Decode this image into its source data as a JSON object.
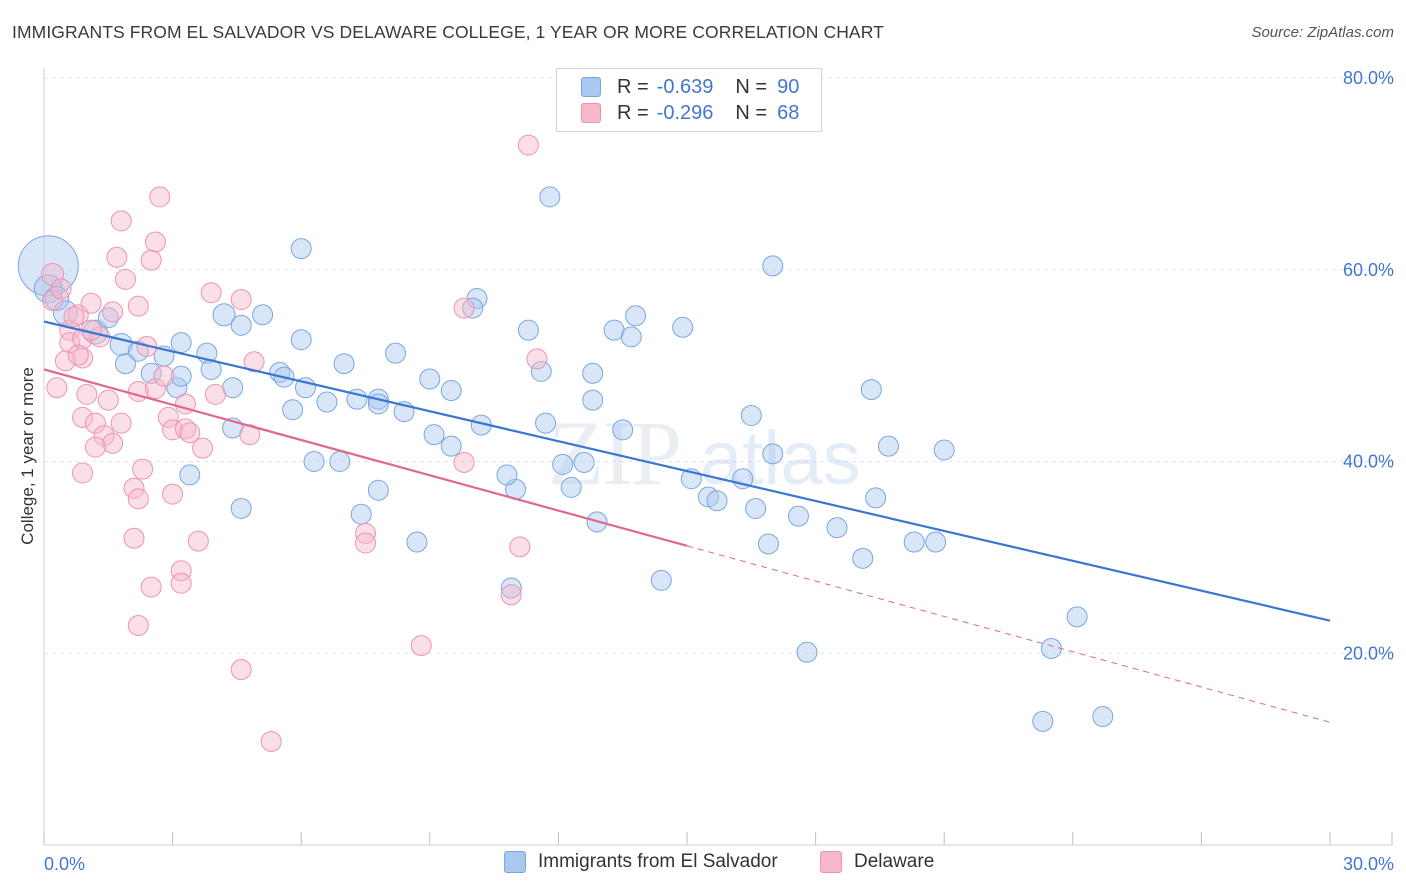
{
  "title": "IMMIGRANTS FROM EL SALVADOR VS DELAWARE COLLEGE, 1 YEAR OR MORE CORRELATION CHART",
  "source": "Source: ZipAtlas.com",
  "watermark": {
    "zip": "ZIP",
    "atlas": "atlas"
  },
  "legend": {
    "r_label": "R =",
    "n_label": "N =",
    "series": [
      {
        "name": "Immigrants from El Salvador",
        "r": "-0.639",
        "n": "90",
        "fill": "#a9c8f0",
        "stroke": "#7aa6e0"
      },
      {
        "name": "Delaware",
        "r": "-0.296",
        "n": "68",
        "fill": "#f7b8cb",
        "stroke": "#ec94b0"
      }
    ]
  },
  "chart_data": {
    "type": "scatter",
    "title": "IMMIGRANTS FROM EL SALVADOR VS DELAWARE COLLEGE, 1 YEAR OR MORE CORRELATION CHART",
    "xlabel": "",
    "ylabel": "College, 1 year or more",
    "xlim": [
      0,
      30
    ],
    "ylim": [
      0,
      80
    ],
    "x_tick_labels": [
      "0.0%",
      "30.0%"
    ],
    "y_ticks": [
      20,
      40,
      60,
      80
    ],
    "y_tick_labels": [
      "20.0%",
      "40.0%",
      "60.0%",
      "80.0%"
    ],
    "grid": true,
    "legend_position": "top-center",
    "colors": {
      "blue_line": "#3a77d0",
      "pink_line": "#e0678f",
      "tick_label": "#4277cf"
    },
    "series": [
      {
        "name": "Immigrants from El Salvador",
        "color": "#a9c8f0",
        "trend": {
          "x": [
            0,
            30
          ],
          "y": [
            54.6,
            23.4
          ],
          "dashed": false
        },
        "points": [
          [
            0.1,
            60.4,
            30
          ],
          [
            0.1,
            58.0,
            14
          ],
          [
            0.3,
            57.0,
            12
          ],
          [
            0.5,
            55.5,
            12
          ],
          [
            1.2,
            53.5,
            12
          ],
          [
            1.8,
            52.2,
            11
          ],
          [
            2.2,
            51.5,
            10
          ],
          [
            2.8,
            51.0,
            10
          ],
          [
            3.2,
            52.4,
            10
          ],
          [
            3.8,
            51.3,
            10
          ],
          [
            4.2,
            55.3,
            11
          ],
          [
            1.5,
            55.0,
            10
          ],
          [
            1.9,
            50.2,
            10
          ],
          [
            2.5,
            49.2,
            10
          ],
          [
            3.1,
            47.7,
            10
          ],
          [
            3.2,
            48.9,
            10
          ],
          [
            3.9,
            49.6,
            10
          ],
          [
            4.4,
            47.7,
            10
          ],
          [
            4.4,
            43.5,
            10
          ],
          [
            4.6,
            54.2,
            10
          ],
          [
            5.1,
            55.3,
            10
          ],
          [
            5.5,
            49.3,
            10
          ],
          [
            5.6,
            48.8,
            10
          ],
          [
            5.8,
            45.4,
            10
          ],
          [
            6.0,
            52.7,
            10
          ],
          [
            6.1,
            47.7,
            10
          ],
          [
            6.6,
            46.2,
            10
          ],
          [
            7.0,
            50.2,
            10
          ],
          [
            7.3,
            46.5,
            10
          ],
          [
            7.8,
            46.5,
            10
          ],
          [
            7.8,
            46.0,
            10
          ],
          [
            8.2,
            51.3,
            10
          ],
          [
            8.4,
            45.2,
            10
          ],
          [
            9.0,
            48.6,
            10
          ],
          [
            9.5,
            47.4,
            10
          ],
          [
            9.1,
            42.8,
            10
          ],
          [
            9.5,
            41.6,
            10
          ],
          [
            6.0,
            62.2,
            10
          ],
          [
            10.1,
            57.0,
            10
          ],
          [
            10.0,
            56.0,
            10
          ],
          [
            11.3,
            53.7,
            10
          ],
          [
            11.6,
            49.4,
            10
          ],
          [
            11.7,
            44.0,
            10
          ],
          [
            12.1,
            39.7,
            10
          ],
          [
            12.3,
            37.3,
            10
          ],
          [
            11.8,
            67.6,
            10
          ],
          [
            12.8,
            49.2,
            10
          ],
          [
            12.8,
            46.4,
            10
          ],
          [
            13.3,
            53.7,
            10
          ],
          [
            13.5,
            43.3,
            10
          ],
          [
            13.7,
            53.0,
            10
          ],
          [
            13.8,
            55.2,
            10
          ],
          [
            14.9,
            54.0,
            10
          ],
          [
            15.1,
            38.2,
            10
          ],
          [
            15.5,
            36.3,
            10
          ],
          [
            16.3,
            38.2,
            10
          ],
          [
            16.5,
            44.8,
            10
          ],
          [
            16.6,
            35.1,
            10
          ],
          [
            16.9,
            31.4,
            10
          ],
          [
            17.0,
            60.4,
            10
          ],
          [
            17.0,
            40.8,
            10
          ],
          [
            17.6,
            34.3,
            10
          ],
          [
            17.8,
            20.1,
            10
          ],
          [
            18.5,
            33.1,
            10
          ],
          [
            19.1,
            29.9,
            10
          ],
          [
            19.3,
            47.5,
            10
          ],
          [
            19.4,
            36.2,
            10
          ],
          [
            19.7,
            41.6,
            10
          ],
          [
            20.3,
            31.6,
            10
          ],
          [
            20.8,
            31.6,
            10
          ],
          [
            21.0,
            41.2,
            10
          ],
          [
            23.5,
            20.5,
            10
          ],
          [
            24.1,
            23.8,
            10
          ],
          [
            23.3,
            12.9,
            10
          ],
          [
            24.7,
            13.4,
            10
          ],
          [
            3.4,
            38.6,
            10
          ],
          [
            4.6,
            35.1,
            10
          ],
          [
            7.4,
            34.5,
            10
          ],
          [
            8.7,
            31.6,
            10
          ],
          [
            10.9,
            26.8,
            10
          ],
          [
            12.9,
            33.7,
            10
          ],
          [
            14.4,
            27.6,
            10
          ],
          [
            15.7,
            35.9,
            10
          ],
          [
            11.0,
            37.1,
            10
          ],
          [
            7.8,
            37.0,
            10
          ],
          [
            6.3,
            40.0,
            10
          ],
          [
            6.9,
            40.0,
            10
          ],
          [
            10.8,
            38.6,
            10
          ],
          [
            12.6,
            39.9,
            10
          ],
          [
            10.2,
            43.8,
            10
          ]
        ]
      },
      {
        "name": "Delaware",
        "color": "#f7b8cb",
        "trend": {
          "x": [
            0,
            15
          ],
          "y": [
            49.6,
            31.2
          ],
          "dashed": false,
          "extension": {
            "x": [
              15,
              30
            ],
            "y": [
              31.2,
              12.8
            ],
            "dashed": true
          }
        },
        "points": [
          [
            0.2,
            59.5,
            11
          ],
          [
            0.2,
            56.8,
            10
          ],
          [
            0.4,
            58.0,
            10
          ],
          [
            0.6,
            53.7,
            10
          ],
          [
            0.8,
            55.3,
            10
          ],
          [
            0.6,
            52.4,
            10
          ],
          [
            0.9,
            52.8,
            10
          ],
          [
            1.1,
            56.5,
            10
          ],
          [
            0.9,
            50.8,
            10
          ],
          [
            0.5,
            50.5,
            10
          ],
          [
            0.8,
            51.1,
            10
          ],
          [
            1.0,
            47.0,
            10
          ],
          [
            0.3,
            47.7,
            10
          ],
          [
            0.9,
            44.6,
            10
          ],
          [
            1.2,
            44.0,
            10
          ],
          [
            1.4,
            42.7,
            10
          ],
          [
            1.5,
            46.4,
            10
          ],
          [
            1.8,
            44.0,
            10
          ],
          [
            2.2,
            47.3,
            10
          ],
          [
            1.6,
            41.9,
            10
          ],
          [
            1.2,
            41.5,
            10
          ],
          [
            0.9,
            38.8,
            10
          ],
          [
            2.3,
            39.2,
            10
          ],
          [
            2.1,
            37.2,
            10
          ],
          [
            2.2,
            36.1,
            10
          ],
          [
            3.0,
            36.6,
            10
          ],
          [
            2.1,
            32.0,
            10
          ],
          [
            3.6,
            31.7,
            10
          ],
          [
            3.2,
            28.6,
            10
          ],
          [
            2.5,
            26.9,
            10
          ],
          [
            3.2,
            27.3,
            10
          ],
          [
            2.2,
            22.9,
            10
          ],
          [
            1.8,
            65.1,
            10
          ],
          [
            2.5,
            61.0,
            10
          ],
          [
            1.7,
            61.3,
            10
          ],
          [
            2.6,
            62.9,
            10
          ],
          [
            2.7,
            67.6,
            10
          ],
          [
            1.9,
            59.0,
            10
          ],
          [
            2.2,
            56.2,
            10
          ],
          [
            3.9,
            57.6,
            10
          ],
          [
            4.6,
            56.9,
            10
          ],
          [
            2.4,
            52.0,
            10
          ],
          [
            2.6,
            47.6,
            10
          ],
          [
            2.9,
            44.6,
            10
          ],
          [
            3.0,
            43.3,
            10
          ],
          [
            3.3,
            43.4,
            10
          ],
          [
            3.4,
            43.0,
            10
          ],
          [
            3.7,
            41.4,
            10
          ],
          [
            4.8,
            42.8,
            10
          ],
          [
            4.9,
            50.4,
            10
          ],
          [
            9.8,
            56.0,
            10
          ],
          [
            11.5,
            50.7,
            10
          ],
          [
            9.8,
            39.9,
            10
          ],
          [
            7.5,
            32.5,
            10
          ],
          [
            7.5,
            31.5,
            10
          ],
          [
            11.1,
            31.1,
            10
          ],
          [
            10.9,
            26.1,
            10
          ],
          [
            8.8,
            20.8,
            10
          ],
          [
            4.6,
            18.3,
            10
          ],
          [
            5.3,
            10.8,
            10
          ],
          [
            11.3,
            73.0,
            10
          ],
          [
            1.3,
            53.0,
            10
          ],
          [
            1.1,
            53.7,
            10
          ],
          [
            0.7,
            55.1,
            10
          ],
          [
            1.6,
            55.6,
            10
          ],
          [
            2.8,
            48.9,
            10
          ],
          [
            4.0,
            47.0,
            10
          ],
          [
            3.3,
            46.0,
            10
          ]
        ]
      }
    ]
  }
}
